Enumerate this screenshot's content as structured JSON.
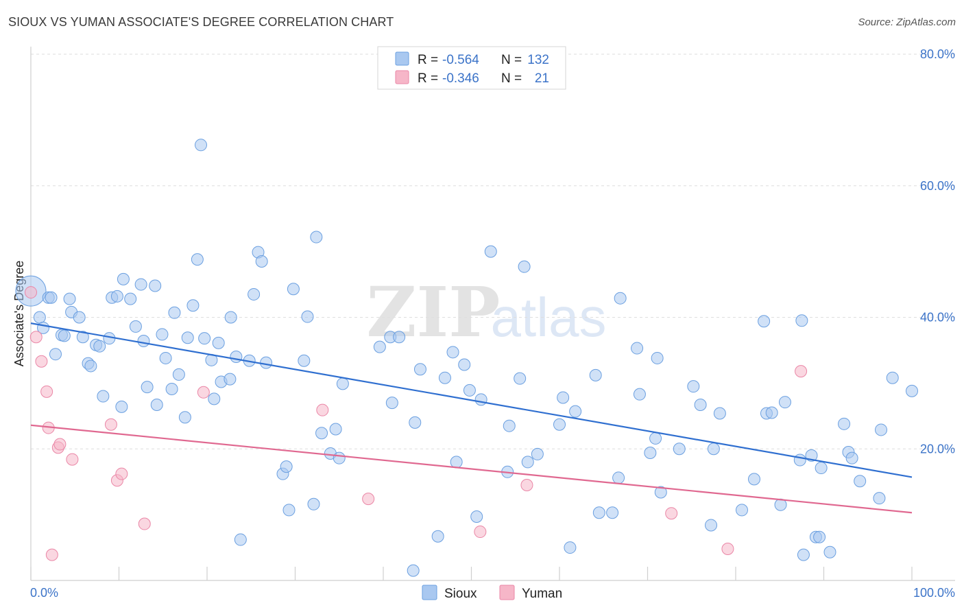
{
  "header": {
    "title": "SIOUX VS YUMAN ASSOCIATE'S DEGREE CORRELATION CHART",
    "source": "Source: ZipAtlas.com"
  },
  "watermark": {
    "zip": "ZIP",
    "atlas": "atlas"
  },
  "legend_top": [
    {
      "r_label": "R =",
      "r_value": "-0.564",
      "n_label": "N =",
      "n_value": "132",
      "color": "#a9c8f0"
    },
    {
      "r_label": "R =",
      "r_value": "-0.346",
      "n_label": "N =",
      "n_value": "21",
      "color": "#f6b6c8"
    }
  ],
  "colors": {
    "sioux_fill": "#a9c8f0",
    "sioux_stroke": "#6a9fe0",
    "sioux_line": "#2f6fd0",
    "yuman_fill": "#f6b6c8",
    "yuman_stroke": "#ea86a6",
    "yuman_line": "#e06890",
    "accent_text": "#3b73c8"
  },
  "chart_data": {
    "type": "scatter",
    "title": "SIOUX VS YUMAN ASSOCIATE'S DEGREE CORRELATION CHART",
    "xlabel": "",
    "ylabel": "Associate's Degree",
    "xlim": [
      0,
      100
    ],
    "ylim": [
      0,
      80
    ],
    "x_tick_labels": [
      "0.0%",
      "100.0%"
    ],
    "y_ticks": [
      20,
      40,
      60,
      80
    ],
    "y_tick_labels": [
      "20.0%",
      "40.0%",
      "60.0%",
      "80.0%"
    ],
    "grid": true,
    "legend_position": "bottom",
    "series": [
      {
        "name": "Sioux",
        "trend": {
          "x": [
            0,
            100
          ],
          "y": [
            39.1,
            15.7
          ]
        },
        "points": [
          [
            0.0,
            44.0,
            2
          ],
          [
            1.0,
            40.0,
            1
          ],
          [
            1.4,
            38.4,
            1
          ],
          [
            2.0,
            43.0,
            1
          ],
          [
            2.3,
            43.0,
            1
          ],
          [
            2.8,
            34.4,
            1
          ],
          [
            3.5,
            37.3,
            1
          ],
          [
            3.8,
            37.2,
            1
          ],
          [
            4.4,
            42.8,
            1
          ],
          [
            4.6,
            40.8,
            1
          ],
          [
            5.5,
            40.0,
            1
          ],
          [
            5.9,
            37.0,
            1
          ],
          [
            6.5,
            33.0,
            1
          ],
          [
            6.8,
            32.6,
            1
          ],
          [
            7.4,
            35.8,
            1
          ],
          [
            7.8,
            35.6,
            1
          ],
          [
            8.2,
            28.0,
            1
          ],
          [
            8.9,
            36.8,
            1
          ],
          [
            9.2,
            43.0,
            1
          ],
          [
            9.8,
            43.2,
            1
          ],
          [
            10.3,
            26.4,
            1
          ],
          [
            10.5,
            45.8,
            1
          ],
          [
            11.3,
            42.8,
            1
          ],
          [
            11.9,
            38.6,
            1
          ],
          [
            12.5,
            45.0,
            1
          ],
          [
            12.8,
            36.4,
            1
          ],
          [
            13.2,
            29.4,
            1
          ],
          [
            14.1,
            44.8,
            1
          ],
          [
            14.3,
            26.7,
            1
          ],
          [
            14.9,
            37.4,
            1
          ],
          [
            15.3,
            33.8,
            1
          ],
          [
            16.0,
            29.1,
            1
          ],
          [
            16.3,
            40.7,
            1
          ],
          [
            16.8,
            31.3,
            1
          ],
          [
            17.5,
            24.8,
            1
          ],
          [
            17.8,
            36.9,
            1
          ],
          [
            18.4,
            41.8,
            1
          ],
          [
            18.9,
            48.8,
            1
          ],
          [
            19.3,
            66.2,
            1
          ],
          [
            19.7,
            36.8,
            1
          ],
          [
            20.5,
            33.5,
            1
          ],
          [
            20.8,
            27.6,
            1
          ],
          [
            21.3,
            36.1,
            1
          ],
          [
            21.6,
            30.2,
            1
          ],
          [
            22.6,
            30.6,
            1
          ],
          [
            22.7,
            40.0,
            1
          ],
          [
            23.3,
            34.0,
            1
          ],
          [
            24.8,
            33.4,
            1
          ],
          [
            25.3,
            43.5,
            1
          ],
          [
            25.8,
            49.9,
            1
          ],
          [
            26.2,
            48.5,
            1
          ],
          [
            26.7,
            33.1,
            1
          ],
          [
            28.6,
            16.2,
            1
          ],
          [
            29.0,
            17.3,
            1
          ],
          [
            29.3,
            10.7,
            1
          ],
          [
            29.8,
            44.3,
            1
          ],
          [
            31.0,
            33.4,
            1
          ],
          [
            31.4,
            40.1,
            1
          ],
          [
            32.1,
            11.6,
            1
          ],
          [
            32.4,
            52.2,
            1
          ],
          [
            33.0,
            22.4,
            1
          ],
          [
            34.0,
            19.3,
            1
          ],
          [
            34.6,
            23.0,
            1
          ],
          [
            35.0,
            18.6,
            1
          ],
          [
            35.4,
            29.9,
            1
          ],
          [
            23.8,
            6.2,
            1
          ],
          [
            39.6,
            35.5,
            1
          ],
          [
            40.8,
            37.0,
            1
          ],
          [
            41.0,
            27.0,
            1
          ],
          [
            41.8,
            37.0,
            1
          ],
          [
            43.4,
            1.5,
            1
          ],
          [
            43.6,
            24.0,
            1
          ],
          [
            44.2,
            32.1,
            1
          ],
          [
            46.2,
            6.7,
            1
          ],
          [
            47.0,
            30.8,
            1
          ],
          [
            47.9,
            34.7,
            1
          ],
          [
            48.3,
            18.0,
            1
          ],
          [
            49.2,
            32.8,
            1
          ],
          [
            49.8,
            28.9,
            1
          ],
          [
            50.6,
            9.7,
            1
          ],
          [
            51.1,
            27.5,
            1
          ],
          [
            52.2,
            50.0,
            1
          ],
          [
            54.1,
            16.5,
            1
          ],
          [
            54.3,
            23.5,
            1
          ],
          [
            55.5,
            30.7,
            1
          ],
          [
            56.0,
            47.7,
            1
          ],
          [
            56.4,
            18.0,
            1
          ],
          [
            57.5,
            19.2,
            1
          ],
          [
            60.0,
            23.7,
            1
          ],
          [
            60.4,
            27.8,
            1
          ],
          [
            61.8,
            25.7,
            1
          ],
          [
            61.2,
            5.0,
            1
          ],
          [
            64.1,
            31.2,
            1
          ],
          [
            64.5,
            10.3,
            1
          ],
          [
            66.0,
            10.3,
            1
          ],
          [
            66.7,
            15.6,
            1
          ],
          [
            66.9,
            42.9,
            1
          ],
          [
            68.8,
            35.3,
            1
          ],
          [
            69.1,
            28.3,
            1
          ],
          [
            70.3,
            19.4,
            1
          ],
          [
            70.9,
            21.6,
            1
          ],
          [
            71.1,
            33.8,
            1
          ],
          [
            71.5,
            13.4,
            1
          ],
          [
            73.6,
            20.0,
            1
          ],
          [
            75.2,
            29.5,
            1
          ],
          [
            76.0,
            26.7,
            1
          ],
          [
            77.2,
            8.4,
            1
          ],
          [
            77.5,
            20.0,
            1
          ],
          [
            78.2,
            25.4,
            1
          ],
          [
            80.7,
            10.7,
            1
          ],
          [
            82.1,
            15.4,
            1
          ],
          [
            83.2,
            39.4,
            1
          ],
          [
            83.5,
            25.4,
            1
          ],
          [
            84.1,
            25.5,
            1
          ],
          [
            85.1,
            11.5,
            1
          ],
          [
            85.6,
            27.1,
            1
          ],
          [
            87.3,
            18.3,
            1
          ],
          [
            87.5,
            39.5,
            1
          ],
          [
            87.7,
            3.9,
            1
          ],
          [
            88.6,
            19.0,
            1
          ],
          [
            89.1,
            6.6,
            1
          ],
          [
            89.5,
            6.6,
            1
          ],
          [
            89.7,
            17.1,
            1
          ],
          [
            90.7,
            4.3,
            1
          ],
          [
            92.3,
            23.8,
            1
          ],
          [
            92.8,
            19.5,
            1
          ],
          [
            93.2,
            18.6,
            1
          ],
          [
            94.1,
            15.1,
            1
          ],
          [
            96.3,
            12.5,
            1
          ],
          [
            96.5,
            22.9,
            1
          ],
          [
            97.8,
            30.8,
            1
          ],
          [
            100.0,
            28.8,
            1
          ]
        ]
      },
      {
        "name": "Yuman",
        "trend": {
          "x": [
            0,
            100
          ],
          "y": [
            23.6,
            10.3
          ]
        },
        "points": [
          [
            0.0,
            43.8,
            1
          ],
          [
            0.6,
            37.0,
            1
          ],
          [
            1.2,
            33.3,
            1
          ],
          [
            1.8,
            28.7,
            1
          ],
          [
            2.0,
            23.2,
            1
          ],
          [
            2.4,
            3.9,
            1
          ],
          [
            3.1,
            20.2,
            1
          ],
          [
            3.3,
            20.7,
            1
          ],
          [
            4.7,
            18.4,
            1
          ],
          [
            9.1,
            23.7,
            1
          ],
          [
            9.8,
            15.2,
            1
          ],
          [
            10.3,
            16.2,
            1
          ],
          [
            12.9,
            8.6,
            1
          ],
          [
            19.6,
            28.6,
            1
          ],
          [
            33.1,
            25.9,
            1
          ],
          [
            38.3,
            12.4,
            1
          ],
          [
            51.0,
            7.4,
            1
          ],
          [
            56.3,
            14.5,
            1
          ],
          [
            72.7,
            10.2,
            1
          ],
          [
            79.1,
            4.8,
            1
          ],
          [
            87.4,
            31.8,
            1
          ]
        ]
      }
    ]
  },
  "bottom_legend": [
    {
      "label": "Sioux",
      "color": "#a9c8f0"
    },
    {
      "label": "Yuman",
      "color": "#f6b6c8"
    }
  ]
}
